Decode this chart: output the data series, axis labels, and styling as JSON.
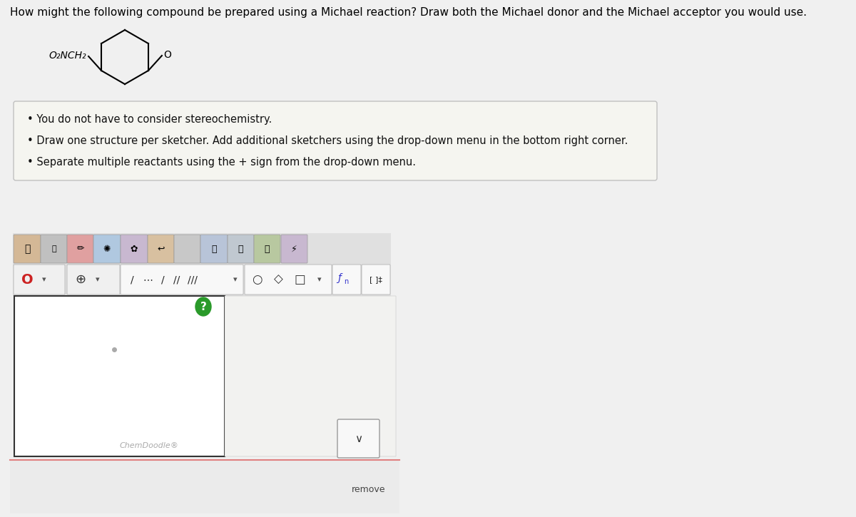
{
  "title_text": "How might the following compound be prepared using a Michael reaction? Draw both the Michael donor and the Michael acceptor you would use.",
  "title_fontsize": 11,
  "title_color": "#000000",
  "bg_color": "#f0f0f0",
  "white": "#ffffff",
  "bullet_box_bg": "#f5f5f0",
  "bullet_box_border": "#cccccc",
  "bullet_points": [
    "You do not have to consider stereochemistry.",
    "Draw one structure per sketcher. Add additional sketchers using the drop-down menu in the bottom right corner.",
    "Separate multiple reactants using the + sign from the drop-down menu."
  ],
  "bullet_fontsize": 10.5,
  "chemdoodle_text": "ChemDoodle®",
  "remove_text": "remove",
  "toolbar_bg": "#e0e0e0",
  "sketcher_area_bg": "#ffffff",
  "question_mark_color": "#2a9a2a",
  "dot_color": "#999999",
  "red_line_color": "#e08080",
  "bottom_bar_bg": "#ebebeb"
}
